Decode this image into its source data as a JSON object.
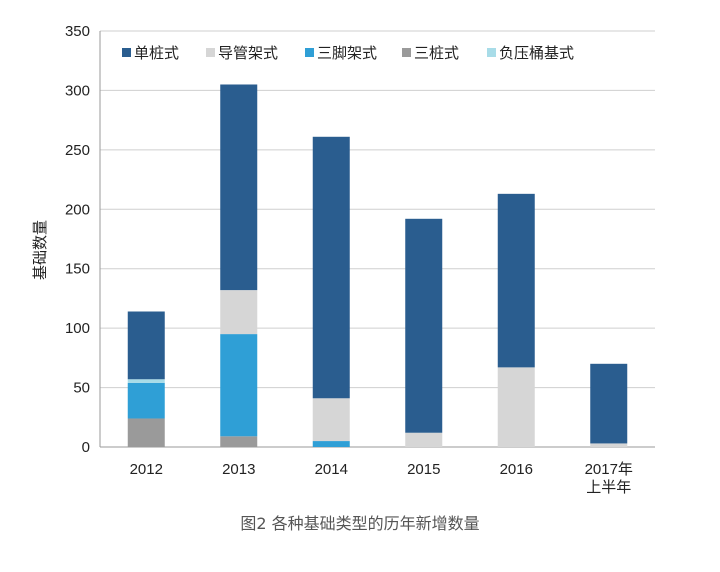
{
  "chart_data": {
    "type": "bar",
    "stacked": true,
    "categories": [
      "2012",
      "2013",
      "2014",
      "2015",
      "2016",
      "2017年上半年"
    ],
    "category_label_lines": [
      [
        "2012"
      ],
      [
        "2013"
      ],
      [
        "2014"
      ],
      [
        "2015"
      ],
      [
        "2016"
      ],
      [
        "2017年",
        "上半年"
      ]
    ],
    "series": [
      {
        "name": "三桩式",
        "color": "#9a9a9a",
        "values": [
          24,
          9,
          0,
          0,
          0,
          0
        ]
      },
      {
        "name": "三脚架式",
        "color": "#2f9fd6",
        "values": [
          30,
          86,
          5,
          0,
          0,
          0
        ]
      },
      {
        "name": "负压桶基式",
        "color": "#a8dce8",
        "values": [
          3,
          0,
          0,
          0,
          0,
          0
        ]
      },
      {
        "name": "导管架式",
        "color": "#d6d6d6",
        "values": [
          0,
          37,
          36,
          12,
          67,
          3
        ]
      },
      {
        "name": "单桩式",
        "color": "#2a5d8f",
        "values": [
          57,
          173,
          220,
          180,
          146,
          67
        ]
      }
    ],
    "legend_order": [
      "单桩式",
      "导管架式",
      "三脚架式",
      "三桩式",
      "负压桶基式"
    ],
    "ylabel": "基础数量",
    "xlabel": "",
    "ylim": [
      0,
      350
    ],
    "yticks": [
      0,
      50,
      100,
      150,
      200,
      250,
      300,
      350
    ],
    "grid": "horizontal",
    "legend_position": "top"
  },
  "caption": "图2 各种基础类型的历年新增数量"
}
